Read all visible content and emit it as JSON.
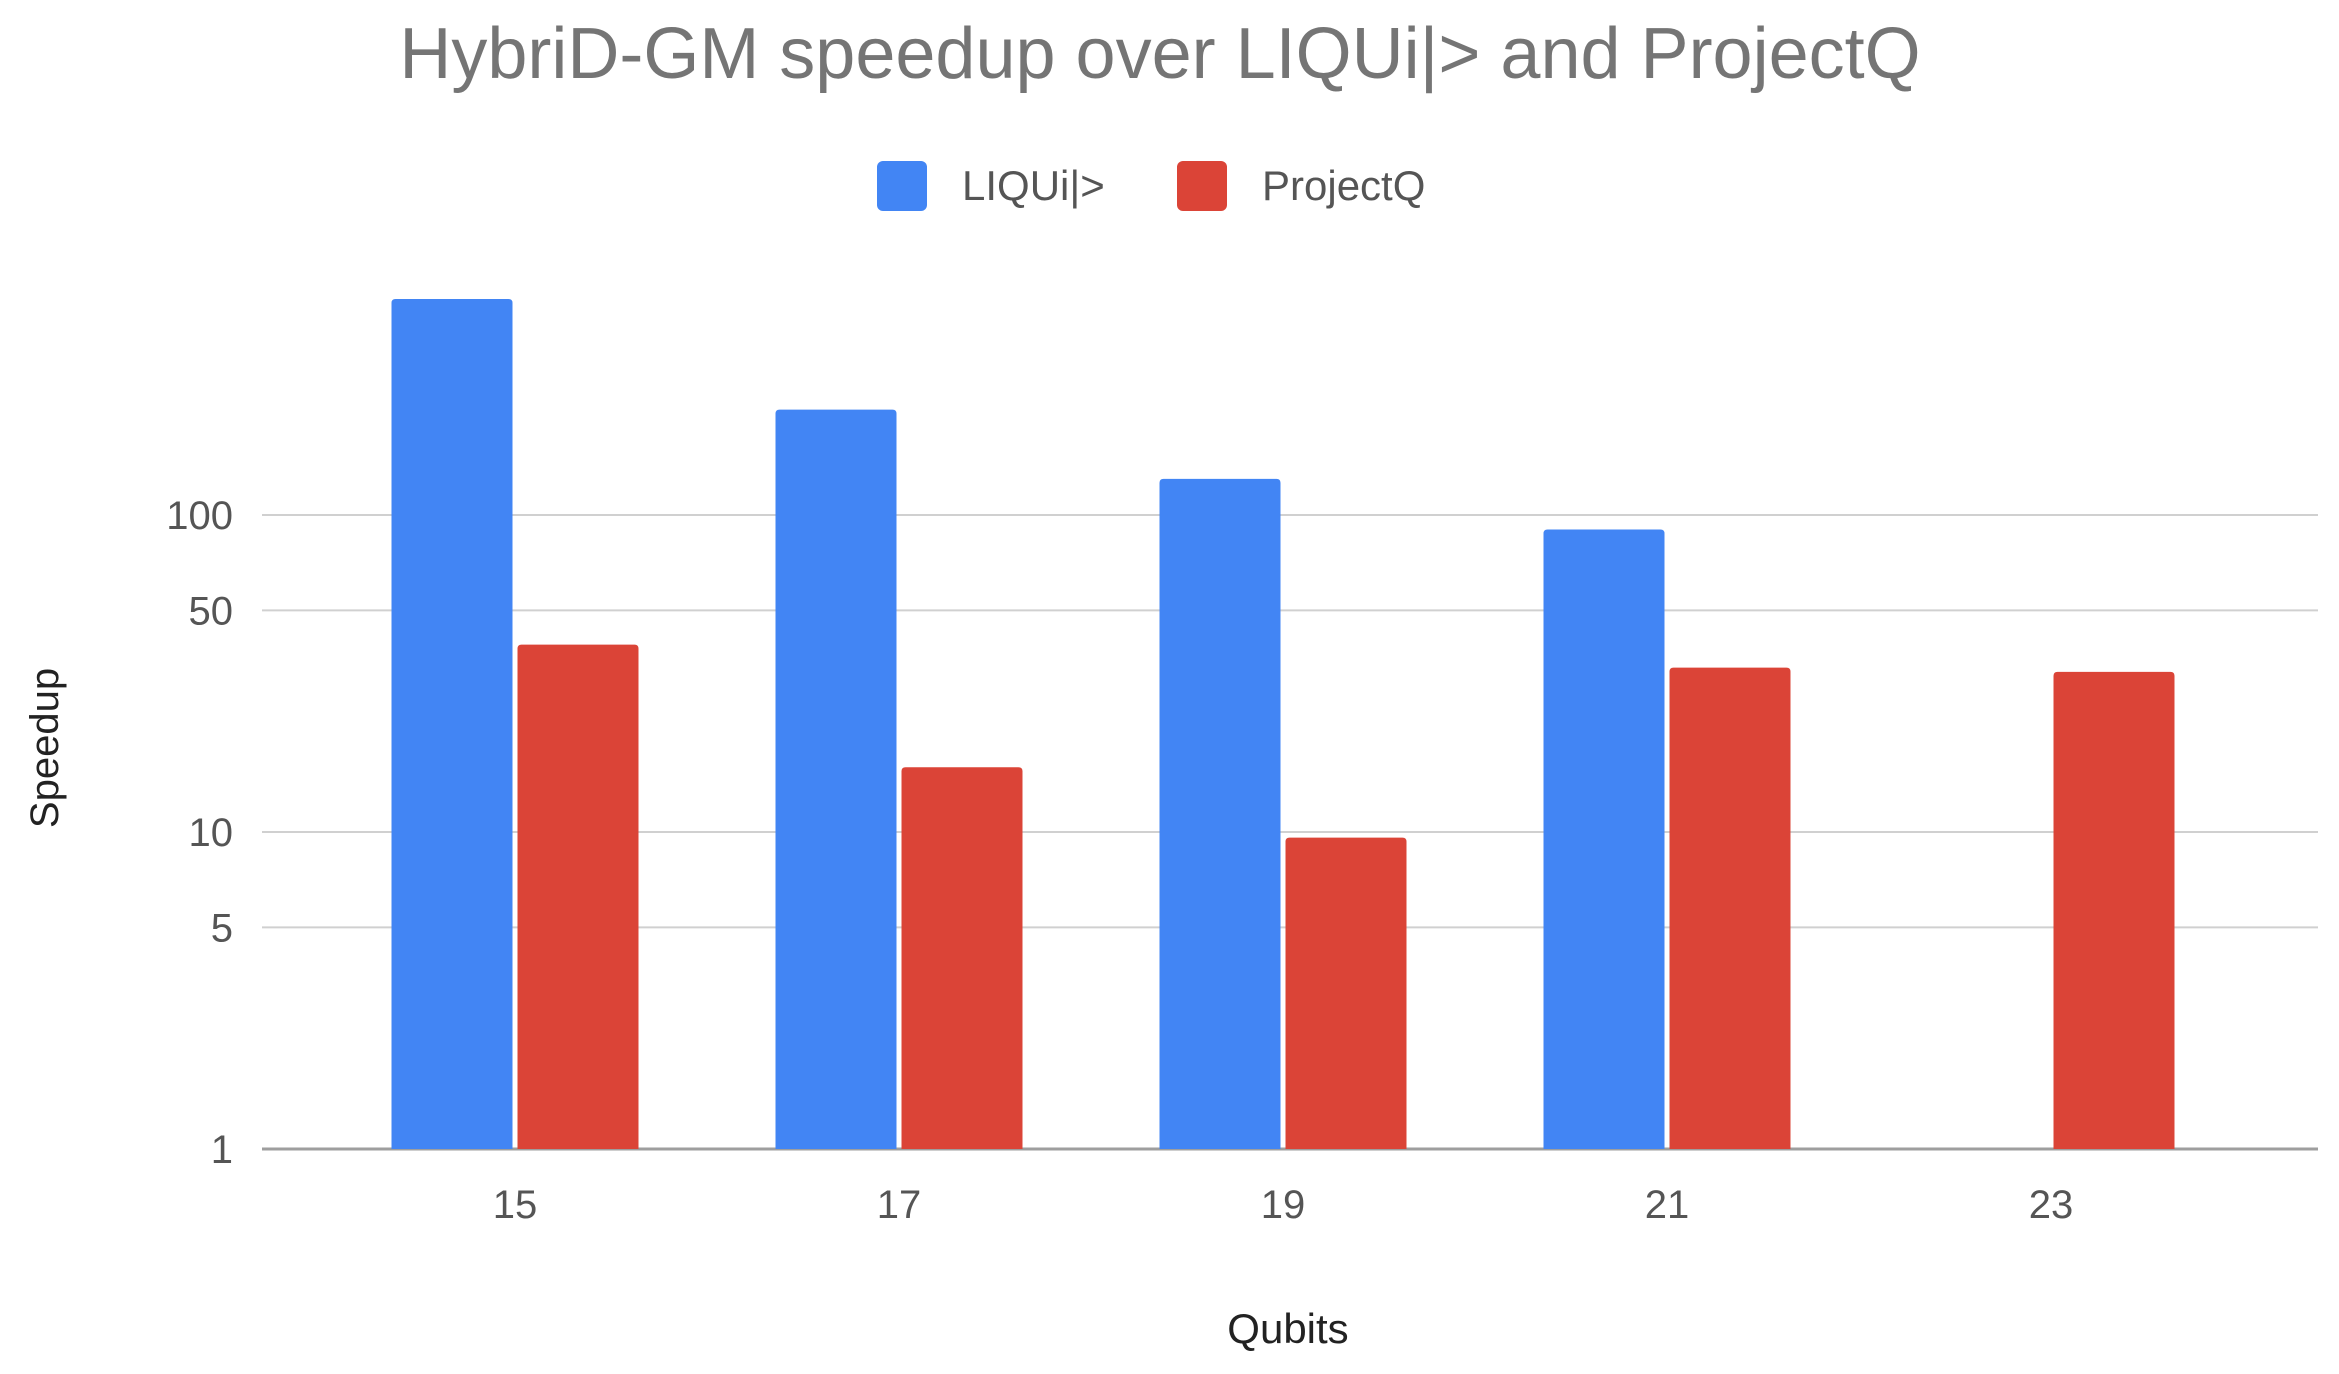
{
  "chart_data": {
    "type": "bar",
    "title": "HybriD-GM speedup over LIQUi|> and ProjectQ",
    "xlabel": "Qubits",
    "ylabel": "Speedup",
    "yscale": "log",
    "ylim": [
      1,
      500
    ],
    "yticks": [
      1,
      5,
      10,
      50,
      100
    ],
    "ytick_labels": [
      "1",
      "5",
      "10",
      "50",
      "100"
    ],
    "grid": true,
    "legend_position": "top-center",
    "categories": [
      "15",
      "17",
      "19",
      "21",
      "23"
    ],
    "series": [
      {
        "name": "LIQUi|>",
        "color": "#4285f4",
        "values": [
          480,
          215,
          130,
          90,
          null
        ]
      },
      {
        "name": "ProjectQ",
        "color": "#db4437",
        "values": [
          39,
          16,
          9.6,
          33,
          32
        ]
      }
    ]
  }
}
